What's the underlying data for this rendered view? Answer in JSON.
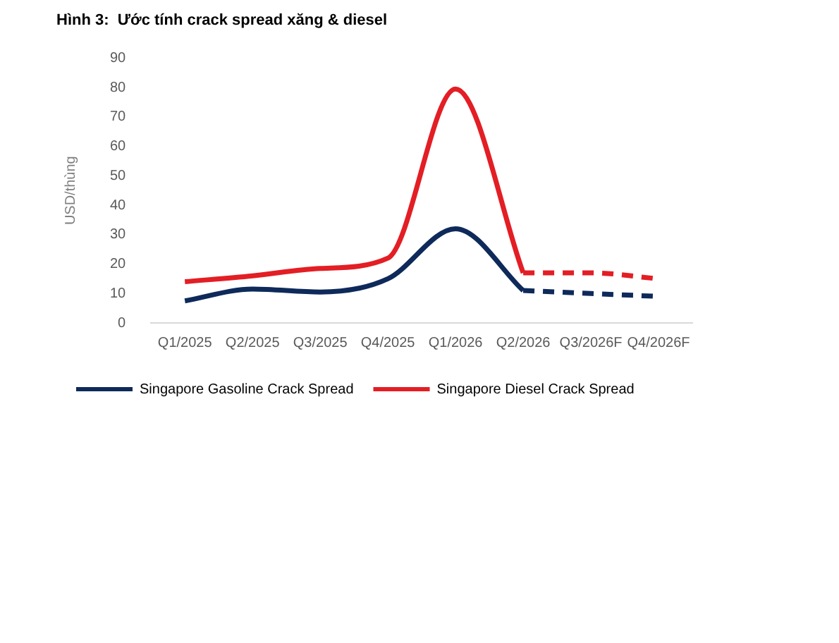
{
  "chart_data": {
    "type": "line",
    "title": "Hình 3:  Ước tính crack spread xăng & diesel",
    "ylabel": "USD/thùng",
    "categories": [
      "Q1/2025",
      "Q2/2025",
      "Q3/2025",
      "Q4/2025",
      "Q1/2026",
      "Q2/2026",
      "Q3/2026F",
      "Q4/2026F"
    ],
    "series": [
      {
        "name": "Singapore Gasoline Crack Spread",
        "color": "#0e2a5a",
        "values": [
          7.5,
          11.5,
          10.5,
          15,
          32,
          11,
          null,
          null
        ]
      },
      {
        "name": "Singapore Diesel Crack Spread",
        "color": "#e31e24",
        "values": [
          14,
          16,
          18.5,
          22,
          79.5,
          17,
          null,
          null
        ]
      },
      {
        "color": "#0e2a5a",
        "line_style": "dashed",
        "values": [
          null,
          null,
          null,
          null,
          null,
          11,
          10,
          9
        ]
      },
      {
        "color": "#e31e24",
        "line_style": "dashed",
        "values": [
          null,
          null,
          null,
          null,
          null,
          17,
          17,
          15
        ]
      }
    ],
    "ylim": [
      0,
      90
    ],
    "yticks": [
      0,
      10,
      20,
      30,
      40,
      50,
      60,
      70,
      80,
      90
    ],
    "grid": false,
    "legend": "bottom",
    "marker": "none",
    "line_style": "solid"
  }
}
